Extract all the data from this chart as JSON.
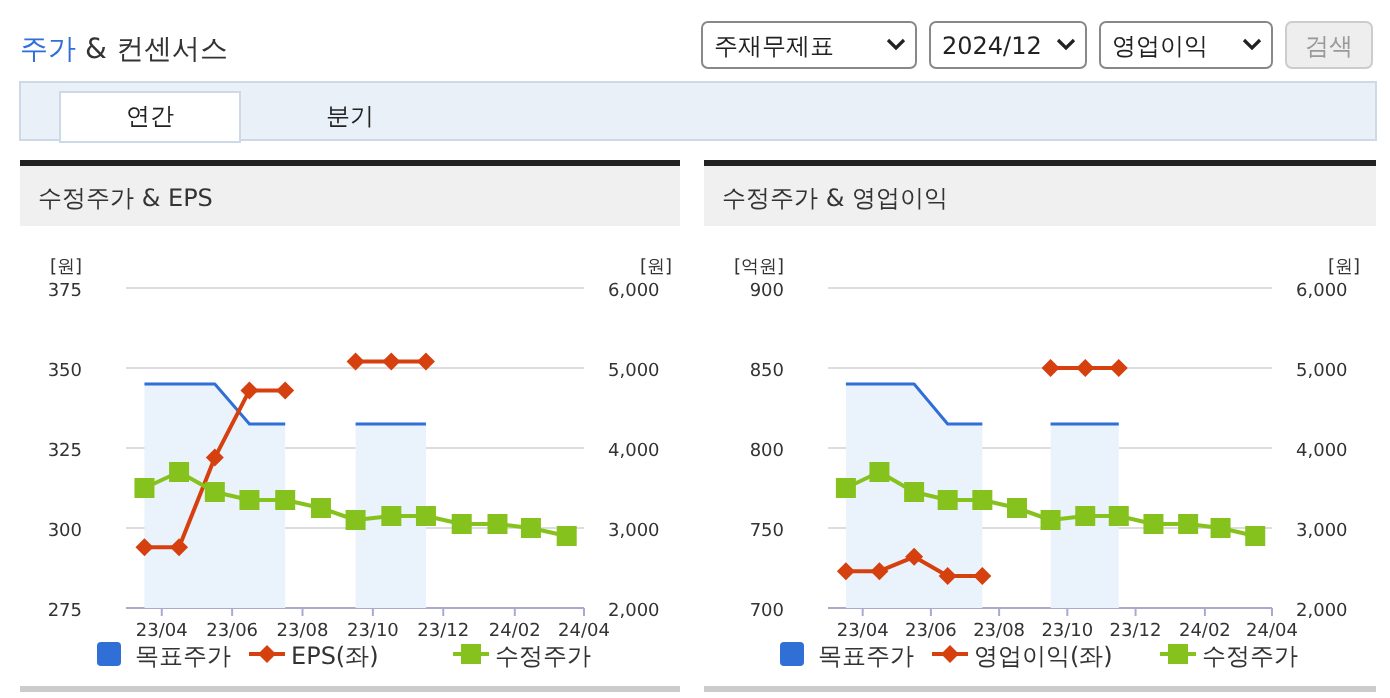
{
  "chart_data": [
    {
      "type": "other",
      "title": "주가 & 컨센서스",
      "annotations": [
        "주재무제표",
        "2024/12",
        "영업이익",
        "검색",
        "연간",
        "분기"
      ]
    },
    {
      "type": "line",
      "title": "수정주가 & EPS",
      "ylabel": "[원]",
      "y2label": "[원]",
      "grid": "y",
      "legend": "bottom",
      "x": [
        "2023-04",
        "2023-05",
        "2023-06",
        "2023-07",
        "2023-08",
        "2023-09",
        "2023-10",
        "2023-11",
        "2023-12",
        "2024-01",
        "2024-02",
        "2024-03",
        "2024-04"
      ],
      "xlim": [
        "2023-03-16",
        "2024-04-16"
      ],
      "xticks": [
        {
          "value": "2023-04-16",
          "label": "23/04"
        },
        {
          "value": "2023-06-16",
          "label": "23/06"
        },
        {
          "value": "2023-08-16",
          "label": "23/08"
        },
        {
          "value": "2023-10-16",
          "label": "23/10"
        },
        {
          "value": "2023-12-16",
          "label": "23/12"
        },
        {
          "value": "2024-02-16",
          "label": "24/02"
        },
        {
          "value": "2024-04-16",
          "label": "24/04"
        }
      ],
      "ylim": [
        275,
        375
      ],
      "yticks": [
        {
          "value": 275,
          "label": "275"
        },
        {
          "value": 300,
          "label": "300"
        },
        {
          "value": 325,
          "label": "325"
        },
        {
          "value": 350,
          "label": "350"
        },
        {
          "value": 375,
          "label": "375"
        }
      ],
      "y2lim": [
        2000,
        6000
      ],
      "y2ticks": [
        {
          "value": 2000,
          "label": "2,000"
        },
        {
          "value": 3000,
          "label": "3,000"
        },
        {
          "value": 4000,
          "label": "4,000"
        },
        {
          "value": 5000,
          "label": "5,000"
        },
        {
          "value": 6000,
          "label": "6,000"
        }
      ],
      "series": [
        {
          "name": "목표주가",
          "type": "area",
          "axis": "y2",
          "color": "#2f6fd6",
          "values": [
            4800,
            4800,
            4800,
            4300,
            4300,
            null,
            4300,
            4300,
            4300,
            null,
            null,
            null,
            null
          ]
        },
        {
          "name": "EPS(좌)",
          "type": "line",
          "color": "#d6400f",
          "marker": "diamond",
          "values": [
            294,
            294,
            322,
            343,
            343,
            null,
            352,
            352,
            352,
            null,
            null,
            null,
            null
          ]
        },
        {
          "name": "수정주가",
          "type": "line",
          "axis": "y2",
          "color": "#86c21e",
          "marker": "square",
          "values": [
            3500,
            3700,
            3450,
            3350,
            3350,
            3250,
            3100,
            3150,
            3150,
            3050,
            3050,
            3000,
            2900
          ]
        }
      ]
    },
    {
      "type": "line",
      "title": "수정주가 & 영업이익",
      "ylabel": "[억원]",
      "y2label": "[원]",
      "grid": "y",
      "legend": "bottom",
      "x": [
        "2023-04",
        "2023-05",
        "2023-06",
        "2023-07",
        "2023-08",
        "2023-09",
        "2023-10",
        "2023-11",
        "2023-12",
        "2024-01",
        "2024-02",
        "2024-03",
        "2024-04"
      ],
      "xlim": [
        "2023-03-16",
        "2024-04-16"
      ],
      "xticks": [
        {
          "value": "2023-04-16",
          "label": "23/04"
        },
        {
          "value": "2023-06-16",
          "label": "23/06"
        },
        {
          "value": "2023-08-16",
          "label": "23/08"
        },
        {
          "value": "2023-10-16",
          "label": "23/10"
        },
        {
          "value": "2023-12-16",
          "label": "23/12"
        },
        {
          "value": "2024-02-16",
          "label": "24/02"
        },
        {
          "value": "2024-04-16",
          "label": "24/04"
        }
      ],
      "ylim": [
        700,
        900
      ],
      "yticks": [
        {
          "value": 700,
          "label": "700"
        },
        {
          "value": 750,
          "label": "750"
        },
        {
          "value": 800,
          "label": "800"
        },
        {
          "value": 850,
          "label": "850"
        },
        {
          "value": 900,
          "label": "900"
        }
      ],
      "y2lim": [
        2000,
        6000
      ],
      "y2ticks": [
        {
          "value": 2000,
          "label": "2,000"
        },
        {
          "value": 3000,
          "label": "3,000"
        },
        {
          "value": 4000,
          "label": "4,000"
        },
        {
          "value": 5000,
          "label": "5,000"
        },
        {
          "value": 6000,
          "label": "6,000"
        }
      ],
      "series": [
        {
          "name": "목표주가",
          "type": "area",
          "axis": "y2",
          "color": "#2f6fd6",
          "values": [
            4800,
            4800,
            4800,
            4300,
            4300,
            null,
            4300,
            4300,
            4300,
            null,
            null,
            null,
            null
          ]
        },
        {
          "name": "영업이익(좌)",
          "type": "line",
          "color": "#d6400f",
          "marker": "diamond",
          "values": [
            723,
            723,
            732,
            720,
            720,
            null,
            850,
            850,
            850,
            null,
            null,
            null,
            null
          ]
        },
        {
          "name": "수정주가",
          "type": "line",
          "axis": "y2",
          "color": "#86c21e",
          "marker": "square",
          "values": [
            3500,
            3700,
            3450,
            3350,
            3350,
            3250,
            3100,
            3150,
            3150,
            3050,
            3050,
            3000,
            2900
          ]
        }
      ]
    }
  ]
}
